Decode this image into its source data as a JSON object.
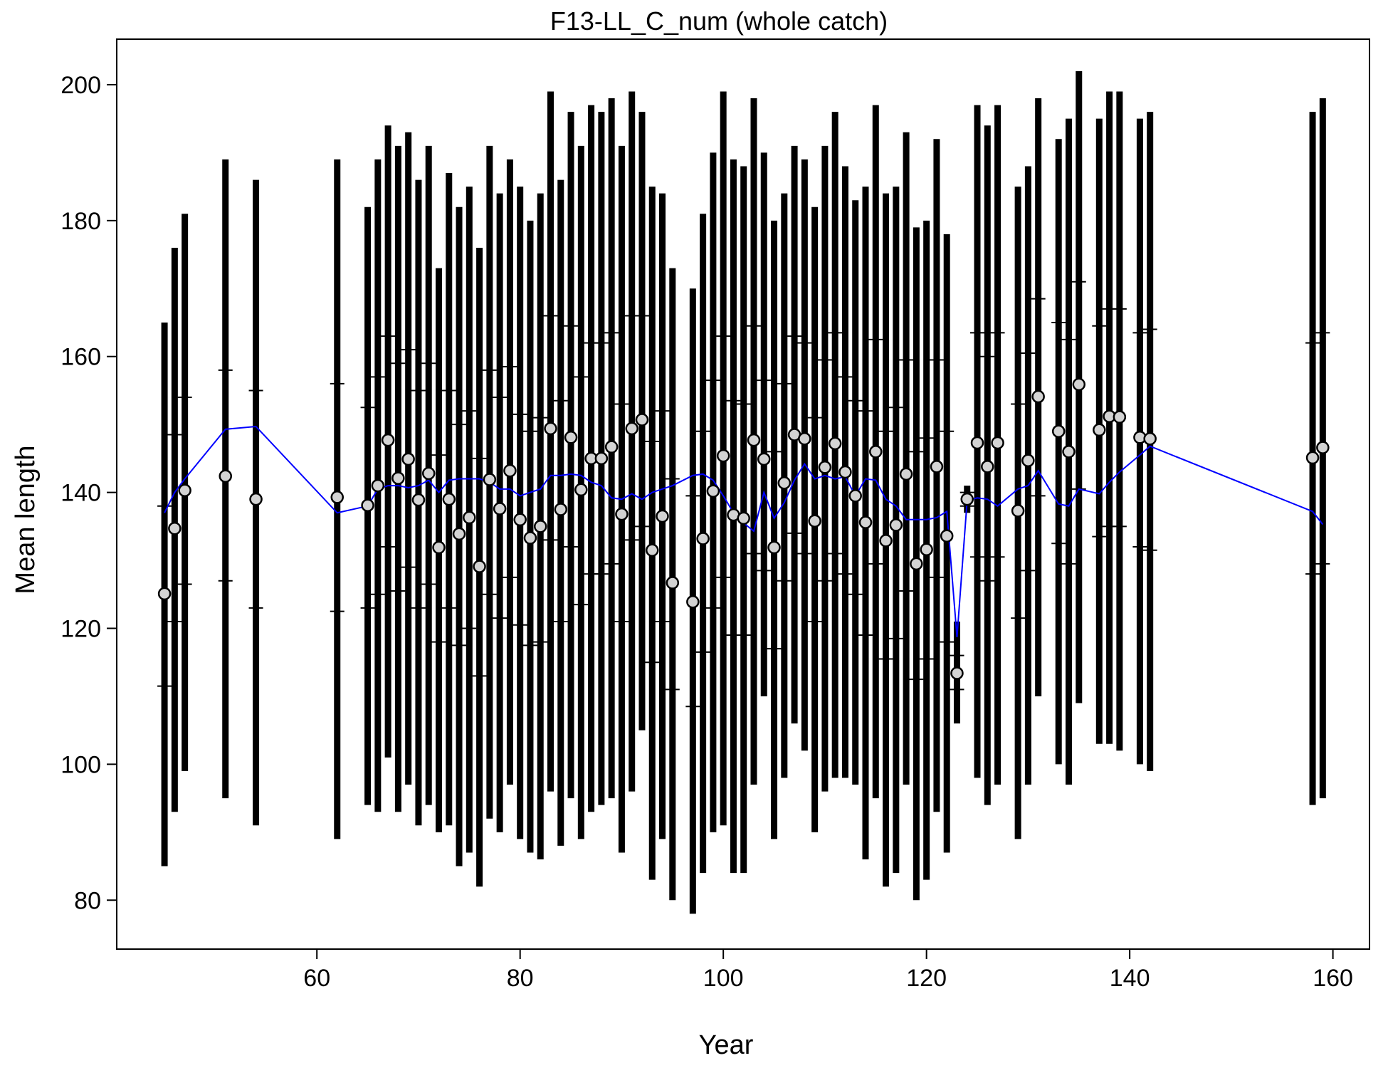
{
  "chart_data": {
    "type": "errorbar",
    "title": "F13-LL_C_num (whole catch)",
    "x_label": "Year",
    "y_label": "Mean length",
    "xlim": [
      40.3,
      163.6
    ],
    "ylim": [
      72.8,
      206.7
    ],
    "xticks": [
      60,
      80,
      100,
      120,
      140,
      160
    ],
    "yticks": [
      80,
      100,
      120,
      140,
      160,
      180,
      200
    ],
    "bar_color": "#000000",
    "point_color": "#d3d3d3",
    "line_color": "#0000ff",
    "x": [
      45,
      46,
      47,
      51,
      54,
      62,
      65,
      66,
      67,
      68,
      69,
      70,
      71,
      72,
      73,
      74,
      75,
      76,
      77,
      78,
      79,
      80,
      81,
      82,
      83,
      84,
      85,
      86,
      87,
      88,
      89,
      90,
      91,
      92,
      93,
      94,
      95,
      97,
      98,
      99,
      100,
      101,
      102,
      103,
      104,
      105,
      106,
      107,
      108,
      109,
      110,
      111,
      112,
      113,
      114,
      115,
      116,
      117,
      118,
      119,
      120,
      121,
      122,
      123,
      124,
      125,
      126,
      127,
      129,
      130,
      131,
      133,
      134,
      135,
      137,
      138,
      139,
      141,
      142,
      158,
      159
    ],
    "obs": [
      125.1,
      134.7,
      140.3,
      142.4,
      139,
      139.3,
      138.1,
      141,
      147.7,
      142.1,
      144.9,
      138.9,
      142.8,
      131.9,
      139,
      133.9,
      136.3,
      129.1,
      141.9,
      137.6,
      143.2,
      136,
      133.3,
      135,
      149.4,
      137.5,
      148.1,
      140.4,
      145,
      145,
      146.7,
      136.8,
      149.4,
      150.7,
      131.5,
      136.5,
      126.7,
      123.9,
      133.2,
      140.2,
      145.4,
      136.7,
      136.2,
      147.7,
      144.9,
      131.9,
      141.4,
      148.5,
      147.9,
      135.8,
      143.7,
      147.2,
      143,
      139.5,
      135.6,
      146,
      132.9,
      135.2,
      142.7,
      129.5,
      131.6,
      143.8,
      133.6,
      113.4,
      139,
      147.3,
      143.8,
      147.3,
      137.3,
      144.7,
      154.1,
      149,
      146,
      155.9,
      149.2,
      151.2,
      151.1,
      148.1,
      147.9,
      145.1,
      146.6
    ],
    "exp": [
      137,
      140,
      142,
      149.3,
      149.7,
      137,
      138,
      140.5,
      141,
      141,
      140.7,
      141,
      141.8,
      140,
      141.8,
      142,
      142,
      142,
      141.5,
      140.5,
      140.5,
      139.5,
      140,
      140.5,
      142.5,
      142.5,
      142.7,
      142.5,
      141.5,
      141,
      139.2,
      139,
      139.8,
      139,
      140,
      140.5,
      141,
      142.5,
      142.7,
      141.8,
      139.5,
      137,
      135.5,
      134.3,
      140,
      136.2,
      138.5,
      141.8,
      144.2,
      142,
      142.5,
      142,
      142.3,
      139.5,
      142,
      141.8,
      139,
      138,
      136,
      136,
      136,
      136.3,
      137.2,
      118.7,
      138.8,
      139.2,
      139,
      138,
      140.5,
      141,
      143.2,
      138.3,
      138,
      140.5,
      139.8,
      141.5,
      143,
      145.5,
      146.8,
      137.2,
      135.3
    ],
    "lower": [
      85,
      93,
      99,
      95,
      91,
      89,
      94,
      93,
      101,
      93,
      97,
      91,
      94,
      90,
      91,
      85,
      87,
      82,
      92,
      90,
      97,
      89,
      87,
      86,
      96,
      88,
      95,
      89,
      93,
      94,
      95,
      87,
      96,
      105,
      83,
      89,
      80,
      78,
      84,
      90,
      91,
      84,
      84,
      97,
      110,
      89,
      98,
      106,
      102,
      90,
      96,
      98,
      98,
      97,
      86,
      95,
      82,
      84,
      97,
      80,
      83,
      93,
      87,
      106,
      137,
      98,
      94,
      97,
      89,
      97,
      110,
      100,
      97,
      109,
      103,
      103,
      102,
      100,
      99,
      94,
      95
    ],
    "upper": [
      165,
      176,
      181,
      189,
      186,
      189,
      182,
      189,
      194,
      191,
      193,
      186,
      191,
      173,
      187,
      182,
      185,
      176,
      191,
      184,
      189,
      185,
      180,
      184,
      199,
      186,
      196,
      191,
      197,
      196,
      198,
      191,
      199,
      196,
      185,
      184,
      173,
      170,
      181,
      190,
      199,
      189,
      188,
      198,
      190,
      180,
      184,
      191,
      189,
      182,
      191,
      196,
      188,
      183,
      185,
      197,
      184,
      185,
      193,
      179,
      180,
      192,
      178,
      121,
      141,
      197,
      194,
      197,
      185,
      188,
      198,
      192,
      195,
      202,
      195,
      199,
      199,
      195,
      196,
      196,
      198
    ],
    "q_lower": [
      111.5,
      121,
      126.5,
      127,
      123,
      122.5,
      123,
      125,
      132,
      125.5,
      129,
      123,
      126.5,
      118,
      123,
      117.5,
      120,
      113,
      125,
      121.5,
      127.5,
      120.5,
      117.5,
      118,
      133,
      121,
      132,
      123.5,
      128,
      128,
      129.5,
      121,
      133,
      135,
      115,
      121,
      111,
      108.5,
      116.5,
      123,
      127.5,
      119,
      119,
      131,
      128.5,
      117,
      127,
      134,
      131,
      121,
      127,
      131,
      128,
      125,
      119,
      129.5,
      115.5,
      118.5,
      125.5,
      112.5,
      115.5,
      127.5,
      118,
      111,
      138,
      130.5,
      127,
      130.5,
      121.5,
      128.5,
      139.5,
      132.5,
      129.5,
      140.5,
      133.5,
      135,
      135,
      132,
      131.5,
      128,
      129.5
    ],
    "q_upper": [
      138,
      148.5,
      154,
      158,
      155,
      156,
      152.5,
      157,
      163,
      159,
      161,
      155,
      159,
      145.5,
      155,
      150,
      152,
      145,
      158,
      154,
      158.5,
      151.5,
      149,
      151,
      166,
      153.5,
      164.5,
      157,
      162,
      162,
      163.5,
      153,
      166,
      166,
      147.5,
      152,
      142,
      139.5,
      149,
      156.5,
      163,
      153.5,
      153,
      164.5,
      156.5,
      146,
      156,
      163,
      162,
      151,
      159.5,
      163.5,
      157,
      153.5,
      152,
      162.5,
      149,
      152.5,
      159.5,
      146,
      148,
      159.5,
      149,
      116,
      140,
      163.5,
      160,
      163.5,
      153,
      160.5,
      168.5,
      165,
      162.5,
      171,
      164.5,
      167,
      167,
      163.5,
      164,
      162,
      163.5
    ]
  }
}
